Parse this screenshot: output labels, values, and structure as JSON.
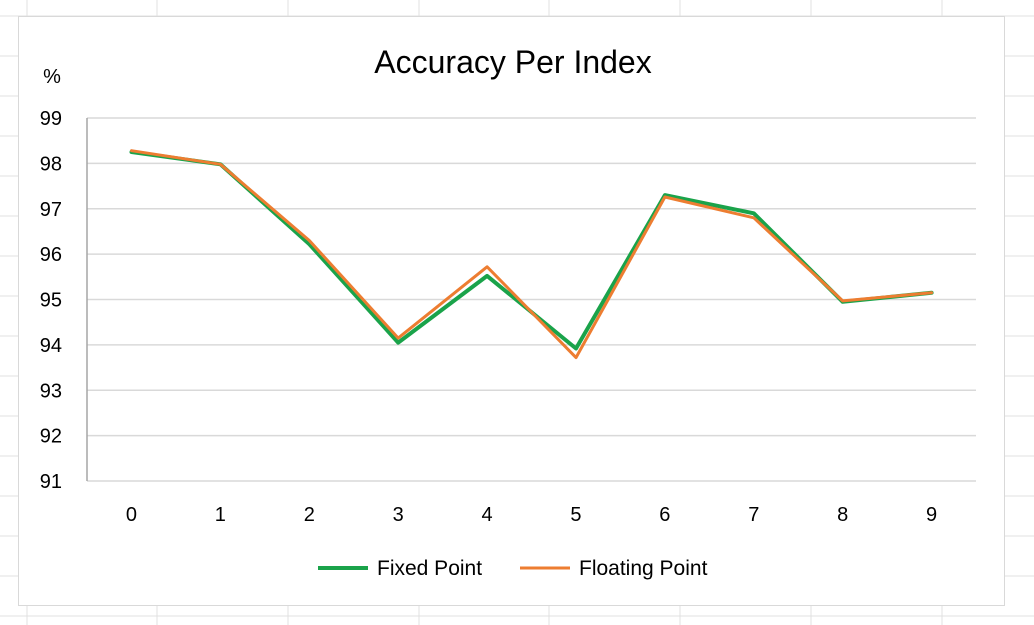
{
  "chart_data": {
    "type": "line",
    "title": "Accuracy Per Index",
    "ylabel": "%",
    "xlabel": "",
    "categories": [
      "0",
      "1",
      "2",
      "3",
      "4",
      "5",
      "6",
      "7",
      "8",
      "9"
    ],
    "ylim": [
      91,
      99
    ],
    "yticks": [
      "91",
      "92",
      "93",
      "94",
      "95",
      "96",
      "97",
      "98",
      "99"
    ],
    "grid": true,
    "legend_position": "bottom",
    "series": [
      {
        "name": "Fixed Point",
        "color": "#1aa34a",
        "values": [
          98.25,
          97.98,
          96.22,
          94.05,
          95.52,
          93.92,
          97.3,
          96.9,
          94.95,
          95.15
        ]
      },
      {
        "name": "Floating Point",
        "color": "#ed7d31",
        "values": [
          98.28,
          97.98,
          96.3,
          94.15,
          95.72,
          93.72,
          97.26,
          96.8,
          94.97,
          95.15
        ]
      }
    ]
  }
}
